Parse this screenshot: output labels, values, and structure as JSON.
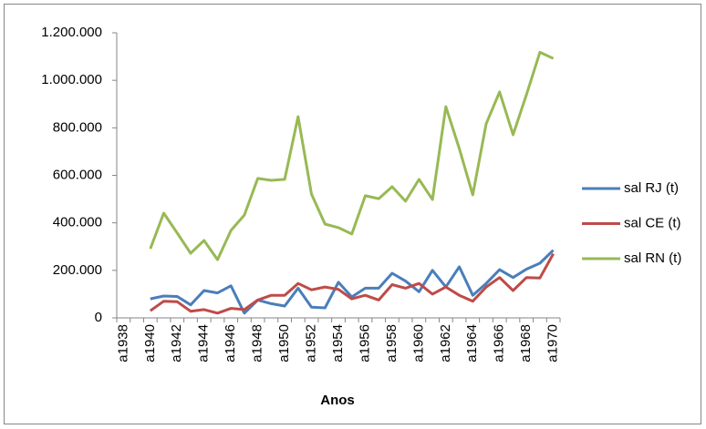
{
  "chart_data": {
    "type": "line",
    "x_label": "Anos",
    "categories": [
      "a1938",
      null,
      "a1940",
      null,
      "a1942",
      null,
      "a1944",
      null,
      "a1946",
      null,
      "a1948",
      null,
      "a1950",
      null,
      "a1952",
      null,
      "a1954",
      null,
      "a1956",
      null,
      "a1958",
      null,
      "a1960",
      null,
      "a1962",
      null,
      "a1964",
      null,
      "a1966",
      null,
      "a1968",
      null,
      "a1970"
    ],
    "ylim": [
      0,
      1200000
    ],
    "yticks": [
      0,
      {
        "value": 200000,
        "label": "200.000"
      },
      {
        "value": 400000,
        "label": "400.000"
      },
      {
        "value": 600000,
        "label": "600.000"
      },
      {
        "value": 800000,
        "label": "800.000"
      },
      {
        "value": 1000000,
        "label": "1.000.000"
      },
      {
        "value": 1200000,
        "label": "1.200.000"
      }
    ],
    "grid": false,
    "legend": "right",
    "series": [
      {
        "name": "sal RJ (t)",
        "color": "#4a7ebb",
        "values": [
          null,
          null,
          80000,
          92000,
          90000,
          55000,
          115000,
          105000,
          135000,
          20000,
          75000,
          60000,
          50000,
          125000,
          45000,
          42000,
          150000,
          88000,
          125000,
          125000,
          188000,
          155000,
          110000,
          200000,
          130000,
          215000,
          95000,
          145000,
          203000,
          170000,
          205000,
          230000,
          285000
        ]
      },
      {
        "name": "sal CE (t)",
        "color": "#be4b48",
        "values": [
          null,
          null,
          30000,
          70000,
          68000,
          28000,
          35000,
          20000,
          40000,
          35000,
          75000,
          95000,
          95000,
          145000,
          118000,
          130000,
          120000,
          80000,
          95000,
          75000,
          140000,
          125000,
          145000,
          100000,
          130000,
          95000,
          70000,
          130000,
          170000,
          115000,
          170000,
          168000,
          270000
        ]
      },
      {
        "name": "sal RN (t)",
        "color": "#98b954",
        "values": [
          null,
          null,
          291000,
          441000,
          357000,
          272000,
          326000,
          245000,
          368000,
          433000,
          587000,
          579000,
          583000,
          847000,
          521000,
          395000,
          380000,
          353000,
          514000,
          502000,
          552000,
          491000,
          583000,
          498000,
          889000,
          713000,
          518000,
          817000,
          951000,
          771000,
          940000,
          1118000,
          1092000
        ]
      }
    ]
  }
}
